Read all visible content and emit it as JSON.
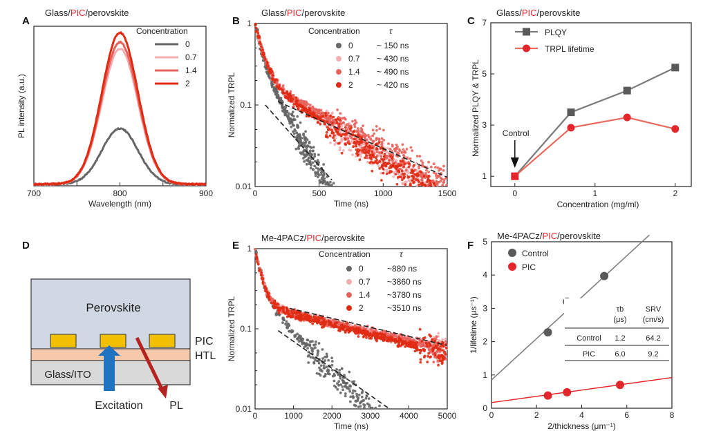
{
  "colors": {
    "c0": "#666666",
    "c07": "#f2aeb1",
    "c14": "#e8625c",
    "c2": "#e02b13",
    "pic": "#e3262c",
    "ctrlpt": "#5a5a5a",
    "axis": "#222222",
    "htl": "#f5c9a9",
    "perov": "#cfd8e3",
    "glass": "#d9d9d9",
    "picblock": "#f2c000",
    "arrowBlue": "#1f73c1",
    "arrowRed": "#b4231f",
    "fitline": "#222222",
    "ctrlline": "#7a7a7a"
  },
  "panels": {
    "A": {
      "letter": "A"
    },
    "B": {
      "letter": "B"
    },
    "C": {
      "letter": "C"
    },
    "D": {
      "letter": "D"
    },
    "E": {
      "letter": "E"
    },
    "F": {
      "letter": "F"
    }
  },
  "chart_data": [
    {
      "id": "A",
      "type": "line",
      "title_parts": [
        "Glass/",
        "PIC",
        "/perovskite"
      ],
      "xlabel": "Wavelength (nm)",
      "ylabel": "PL intensity (a.u.)",
      "xlim": [
        700,
        900
      ],
      "xticks": [
        "700",
        "800",
        "900"
      ],
      "legend_title": "Concentration",
      "series": [
        {
          "name": "0",
          "center": 800,
          "peak": 0.35,
          "width": 21
        },
        {
          "name": "0.7",
          "center": 800,
          "peak": 0.85,
          "width": 21
        },
        {
          "name": "1.4",
          "center": 800,
          "peak": 0.89,
          "width": 21
        },
        {
          "name": "2",
          "center": 800,
          "peak": 0.95,
          "width": 21
        }
      ]
    },
    {
      "id": "B",
      "type": "scatter",
      "title_parts": [
        "Glass/",
        "PIC",
        "/perovskite"
      ],
      "xlabel": "Time (ns)",
      "ylabel": "Normalized TRPL",
      "xlim": [
        0,
        1500
      ],
      "ylim": [
        0.01,
        1
      ],
      "yscale": "log",
      "xticks": [
        "0",
        "500",
        "1000",
        "1500"
      ],
      "yticks": [
        "1",
        "0.1",
        "0.01"
      ],
      "legend_title": "Concentration",
      "legend_tau": "τ",
      "series": [
        {
          "name": "0",
          "tau_label": "~ 150 ns",
          "a1": 0.6,
          "t1": 40,
          "a2": 0.4,
          "t2": 150,
          "tmax": 620
        },
        {
          "name": "0.7",
          "tau_label": "~ 430 ns",
          "a1": 0.78,
          "t1": 55,
          "a2": 0.22,
          "t2": 430,
          "tmax": 1500
        },
        {
          "name": "1.4",
          "tau_label": "~ 490 ns",
          "a1": 0.78,
          "t1": 55,
          "a2": 0.22,
          "t2": 490,
          "tmax": 1500
        },
        {
          "name": "2",
          "tau_label": "~ 420 ns",
          "a1": 0.78,
          "t1": 55,
          "a2": 0.22,
          "t2": 420,
          "tmax": 1500
        }
      ],
      "fits": [
        {
          "x": [
            80,
            600
          ],
          "y": [
            0.1,
            0.012
          ]
        },
        {
          "x": [
            180,
            1500
          ],
          "y": [
            0.11,
            0.013
          ]
        }
      ]
    },
    {
      "id": "C",
      "type": "line",
      "title_parts": [
        "Glass/",
        "PIC",
        "/perovskite"
      ],
      "xlabel": "Concentration (mg/ml)",
      "ylabel": "Normalized PLQY & TRPL",
      "xlim": [
        -0.3,
        2.2
      ],
      "ylim": [
        0.6,
        7
      ],
      "xticks": [
        {
          "v": 0,
          "l": "0"
        },
        {
          "v": 1,
          "l": "1"
        },
        {
          "v": 2,
          "l": "2"
        }
      ],
      "yticks": [
        {
          "v": 1,
          "l": "1"
        },
        {
          "v": 3,
          "l": "3"
        },
        {
          "v": 5,
          "l": "5"
        },
        {
          "v": 7,
          "l": "7"
        }
      ],
      "annotation": "Control",
      "series": [
        {
          "name": "PLQY",
          "x": [
            0,
            0.7,
            1.4,
            2
          ],
          "y": [
            1,
            3.5,
            4.35,
            5.25
          ]
        },
        {
          "name": "TRPL lifetime",
          "x": [
            0,
            0.7,
            1.4,
            2
          ],
          "y": [
            1,
            2.9,
            3.3,
            2.85
          ]
        }
      ]
    },
    {
      "id": "E",
      "type": "scatter",
      "title_parts": [
        "Me-4PACz/",
        "PIC",
        "/perovskite"
      ],
      "xlabel": "Time (ns)",
      "ylabel": "Normalized TRPL",
      "xlim": [
        0,
        5000
      ],
      "ylim": [
        0.01,
        1
      ],
      "yscale": "log",
      "xticks": [
        "0",
        "1000",
        "2000",
        "3000",
        "4000",
        "5000"
      ],
      "yticks": [
        "1",
        "0.1",
        "0.01"
      ],
      "legend_title": "Concentration",
      "legend_tau": "τ",
      "series": [
        {
          "name": "0",
          "tau_label": "~880 ns",
          "a1": 0.72,
          "t1": 150,
          "a2": 0.28,
          "t2": 880,
          "tmax": 3900
        },
        {
          "name": "0.7",
          "tau_label": "~3860 ns",
          "a1": 0.8,
          "t1": 150,
          "a2": 0.2,
          "t2": 3860,
          "tmax": 5000
        },
        {
          "name": "1.4",
          "tau_label": "~3780 ns",
          "a1": 0.8,
          "t1": 150,
          "a2": 0.2,
          "t2": 3780,
          "tmax": 5000
        },
        {
          "name": "2",
          "tau_label": "~3510 ns",
          "a1": 0.8,
          "t1": 150,
          "a2": 0.2,
          "t2": 3510,
          "tmax": 5000
        }
      ],
      "fits": [
        {
          "x": [
            600,
            3500
          ],
          "y": [
            0.095,
            0.01
          ]
        },
        {
          "x": [
            900,
            5000
          ],
          "y": [
            0.18,
            0.062
          ]
        }
      ]
    },
    {
      "id": "F",
      "type": "scatter",
      "title_parts": [
        "Me-4PACz/",
        "PIC",
        "/perovskite"
      ],
      "xlabel": "2/thickness (μm⁻¹)",
      "ylabel": "1/lifetime (μs⁻¹)",
      "xlim": [
        0,
        8
      ],
      "ylim": [
        0,
        5
      ],
      "xticks": [
        {
          "v": 0,
          "l": "0"
        },
        {
          "v": 2,
          "l": "2"
        },
        {
          "v": 4,
          "l": "4"
        },
        {
          "v": 6,
          "l": "6"
        },
        {
          "v": 8,
          "l": "8"
        }
      ],
      "yticks": [
        {
          "v": 0,
          "l": "0"
        },
        {
          "v": 1,
          "l": "1"
        },
        {
          "v": 2,
          "l": "2"
        },
        {
          "v": 3,
          "l": "3"
        },
        {
          "v": 4,
          "l": "4"
        },
        {
          "v": 5,
          "l": "5"
        }
      ],
      "series": [
        {
          "name": "Control",
          "x": [
            2.5,
            3.35,
            5.0
          ],
          "y": [
            2.28,
            3.2,
            3.97
          ],
          "fit": {
            "x": [
              0,
              7.0
            ],
            "y": [
              0.85,
              5.2
            ]
          }
        },
        {
          "name": "PIC",
          "x": [
            2.5,
            3.35,
            5.7
          ],
          "y": [
            0.38,
            0.48,
            0.7
          ],
          "fit": {
            "x": [
              0,
              8
            ],
            "y": [
              0.17,
              0.92
            ]
          }
        }
      ],
      "table": {
        "headers": [
          "",
          "τb",
          "SRV"
        ],
        "units": [
          "",
          "(μs)",
          "(cm/s)"
        ],
        "rows": [
          [
            "Control",
            "1.2",
            "64.2"
          ],
          [
            "PIC",
            "6.0",
            "9.2"
          ]
        ]
      }
    }
  ],
  "diagram": {
    "perovskite": "Perovskite",
    "pic": "PIC",
    "htl": "HTL",
    "glass": "Glass/ITO",
    "excitation": "Excitation",
    "pl": "PL"
  }
}
